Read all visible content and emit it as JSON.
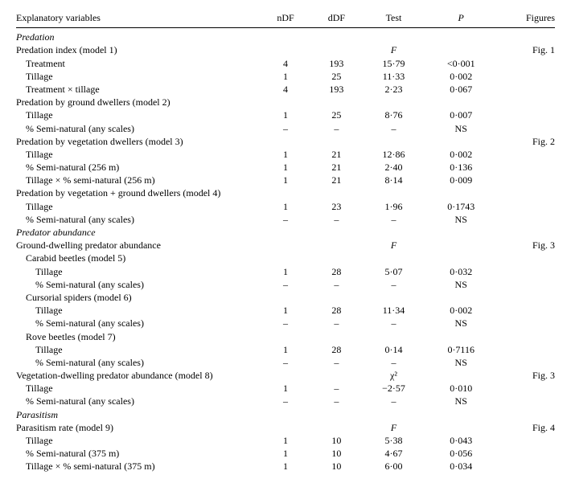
{
  "headers": {
    "explanatory": "Explanatory variables",
    "ndf": "nDF",
    "ddf": "dDF",
    "test": "Test",
    "p": "P",
    "figures": "Figures"
  },
  "rows": [
    {
      "type": "section",
      "label": "Predation"
    },
    {
      "type": "model",
      "indent": 1,
      "label": "Predation index (model 1)",
      "test": "F",
      "testItalic": true,
      "fig": "Fig. 1"
    },
    {
      "type": "row",
      "indent": 2,
      "label": "Treatment",
      "ndf": "4",
      "ddf": "193",
      "test": "15·79",
      "p": "<0·001"
    },
    {
      "type": "row",
      "indent": 2,
      "label": "Tillage",
      "ndf": "1",
      "ddf": "25",
      "test": "11·33",
      "p": "0·002"
    },
    {
      "type": "row",
      "indent": 2,
      "label": "Treatment × tillage",
      "ndf": "4",
      "ddf": "193",
      "test": "2·23",
      "p": "0·067"
    },
    {
      "type": "model",
      "indent": 1,
      "label": "Predation by ground dwellers (model 2)"
    },
    {
      "type": "row",
      "indent": 2,
      "label": "Tillage",
      "ndf": "1",
      "ddf": "25",
      "test": "8·76",
      "p": "0·007"
    },
    {
      "type": "row",
      "indent": 2,
      "label": "% Semi-natural (any scales)",
      "ndf": "–",
      "ddf": "–",
      "test": "–",
      "p": "NS"
    },
    {
      "type": "model",
      "indent": 1,
      "label": "Predation by vegetation dwellers (model 3)",
      "fig": "Fig. 2"
    },
    {
      "type": "row",
      "indent": 2,
      "label": "Tillage",
      "ndf": "1",
      "ddf": "21",
      "test": "12·86",
      "p": "0·002"
    },
    {
      "type": "row",
      "indent": 2,
      "label": "% Semi-natural (256 m)",
      "ndf": "1",
      "ddf": "21",
      "test": "2·40",
      "p": "0·136"
    },
    {
      "type": "row",
      "indent": 2,
      "label": "Tillage × % semi-natural (256 m)",
      "ndf": "1",
      "ddf": "21",
      "test": "8·14",
      "p": "0·009"
    },
    {
      "type": "model",
      "indent": 1,
      "label": "Predation by vegetation + ground dwellers (model 4)"
    },
    {
      "type": "row",
      "indent": 2,
      "label": "Tillage",
      "ndf": "1",
      "ddf": "23",
      "test": "1·96",
      "p": "0·1743"
    },
    {
      "type": "row",
      "indent": 2,
      "label": "% Semi-natural (any scales)",
      "ndf": "–",
      "ddf": "–",
      "test": "–",
      "p": "NS"
    },
    {
      "type": "section",
      "label": "Predator abundance"
    },
    {
      "type": "model",
      "indent": 1,
      "label": "Ground-dwelling predator abundance",
      "test": "F",
      "testItalic": true,
      "fig": "Fig. 3"
    },
    {
      "type": "sub",
      "indent": 2,
      "label": "Carabid beetles (model 5)"
    },
    {
      "type": "row",
      "indent": 3,
      "label": "Tillage",
      "ndf": "1",
      "ddf": "28",
      "test": "5·07",
      "p": "0·032"
    },
    {
      "type": "row",
      "indent": 3,
      "label": "% Semi-natural (any scales)",
      "ndf": "–",
      "ddf": "–",
      "test": "–",
      "p": "NS"
    },
    {
      "type": "sub",
      "indent": 2,
      "label": "Cursorial spiders (model 6)"
    },
    {
      "type": "row",
      "indent": 3,
      "label": "Tillage",
      "ndf": "1",
      "ddf": "28",
      "test": "11·34",
      "p": "0·002"
    },
    {
      "type": "row",
      "indent": 3,
      "label": "% Semi-natural (any scales)",
      "ndf": "–",
      "ddf": "–",
      "test": "–",
      "p": "NS"
    },
    {
      "type": "sub",
      "indent": 2,
      "label": "Rove beetles (model 7)"
    },
    {
      "type": "row",
      "indent": 3,
      "label": "Tillage",
      "ndf": "1",
      "ddf": "28",
      "test": "0·14",
      "p": "0·7116"
    },
    {
      "type": "row",
      "indent": 3,
      "label": "% Semi-natural (any scales)",
      "ndf": "–",
      "ddf": "–",
      "test": "–",
      "p": "NS"
    },
    {
      "type": "model",
      "indent": 1,
      "label": "Vegetation-dwelling predator abundance (model 8)",
      "test": "χ²",
      "testItalic": false,
      "fig": "Fig. 3"
    },
    {
      "type": "row",
      "indent": 2,
      "label": "Tillage",
      "ndf": "1",
      "ddf": "–",
      "test": "−2·57",
      "p": "0·010"
    },
    {
      "type": "row",
      "indent": 2,
      "label": "% Semi-natural (any scales)",
      "ndf": "–",
      "ddf": "–",
      "test": "–",
      "p": "NS"
    },
    {
      "type": "section",
      "label": "Parasitism"
    },
    {
      "type": "model",
      "indent": 1,
      "label": "Parasitism rate (model 9)",
      "test": "F",
      "testItalic": true,
      "fig": "Fig. 4"
    },
    {
      "type": "row",
      "indent": 2,
      "label": "Tillage",
      "ndf": "1",
      "ddf": "10",
      "test": "5·38",
      "p": "0·043"
    },
    {
      "type": "row",
      "indent": 2,
      "label": "% Semi-natural (375 m)",
      "ndf": "1",
      "ddf": "10",
      "test": "4·67",
      "p": "0·056"
    },
    {
      "type": "row",
      "indent": 2,
      "label": "Tillage × % semi-natural (375 m)",
      "ndf": "1",
      "ddf": "10",
      "test": "6·00",
      "p": "0·034"
    }
  ]
}
